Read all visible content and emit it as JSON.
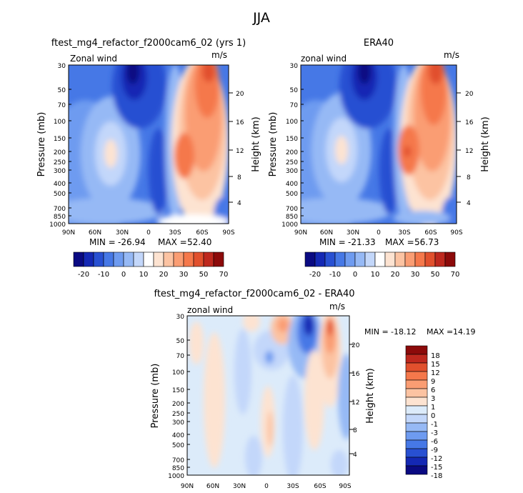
{
  "main_title": "JJA",
  "chart_data": [
    {
      "type": "heatmap",
      "title": "ftest_mg4_refactor_f2000cam6_02 (yrs 1)",
      "field_label": "Zonal wind",
      "units": "m/s",
      "ylabel": "Pressure (mb)",
      "ylabel_right": "Height (km)",
      "x_ticks": [
        "90N",
        "60N",
        "30N",
        "0",
        "30S",
        "60S",
        "90S"
      ],
      "y_ticks": [
        "30",
        "50",
        "70",
        "100",
        "150",
        "200",
        "250",
        "300",
        "400",
        "500",
        "700",
        "850",
        "1000"
      ],
      "height_ticks": [
        "4",
        "8",
        "12",
        "16",
        "20"
      ],
      "stats": {
        "min_label": "MIN =",
        "min": "-26.94",
        "max_label": "MAX =",
        "max": "52.40"
      },
      "colorbar_labels": [
        "-20",
        "-10",
        "0",
        "10",
        "20",
        "30",
        "50",
        "70"
      ]
    },
    {
      "type": "heatmap",
      "title": "ERA40",
      "field_label": "zonal wind",
      "units": "m/s",
      "ylabel": "Pressure (mb)",
      "ylabel_right": "Height (km)",
      "x_ticks": [
        "90N",
        "60N",
        "30N",
        "0",
        "30S",
        "60S",
        "90S"
      ],
      "y_ticks": [
        "30",
        "50",
        "70",
        "100",
        "150",
        "200",
        "250",
        "300",
        "400",
        "500",
        "700",
        "850",
        "1000"
      ],
      "height_ticks": [
        "4",
        "8",
        "12",
        "16",
        "20"
      ],
      "stats": {
        "min_label": "MIN =",
        "min": "-21.33",
        "max_label": "MAX =",
        "max": "56.73"
      },
      "colorbar_labels": [
        "-20",
        "-10",
        "0",
        "10",
        "20",
        "30",
        "50",
        "70"
      ]
    },
    {
      "type": "heatmap",
      "title": "ftest_mg4_refactor_f2000cam6_02 - ERA40",
      "field_label": "zonal wind",
      "units": "m/s",
      "ylabel": "Pressure (mb)",
      "ylabel_right": "Height (km)",
      "x_ticks": [
        "90N",
        "60N",
        "30N",
        "0",
        "30S",
        "60S",
        "90S"
      ],
      "y_ticks": [
        "30",
        "50",
        "70",
        "100",
        "150",
        "200",
        "250",
        "300",
        "400",
        "500",
        "700",
        "850",
        "1000"
      ],
      "height_ticks": [
        "4",
        "8",
        "12",
        "16",
        "20"
      ],
      "stats": {
        "min_label": "MIN =",
        "min": "-18.12",
        "max_label": "MAX =",
        "max": "14.19"
      },
      "colorbar_labels": [
        "18",
        "15",
        "12",
        "9",
        "6",
        "3",
        "1",
        "0",
        "-1",
        "-3",
        "-6",
        "-9",
        "-12",
        "-15",
        "-18"
      ]
    }
  ],
  "colors": {
    "full_field": [
      "#0a0a82",
      "#1428b4",
      "#2850d2",
      "#4678e6",
      "#6e9bf0",
      "#96b9f5",
      "#c3d7fa",
      "#ffffff",
      "#fde3d1",
      "#fcc3a2",
      "#fa9d73",
      "#f5784b",
      "#e1502d",
      "#be281e",
      "#8c0a0a"
    ],
    "difference": [
      "#8c0a0a",
      "#be281e",
      "#e1502d",
      "#f5784b",
      "#fa9d73",
      "#fcc3a2",
      "#fde3d1",
      "#dcebfa",
      "#c3d7fa",
      "#96b9f5",
      "#6e9bf0",
      "#4678e6",
      "#2850d2",
      "#1428b4",
      "#0a0a82"
    ]
  }
}
